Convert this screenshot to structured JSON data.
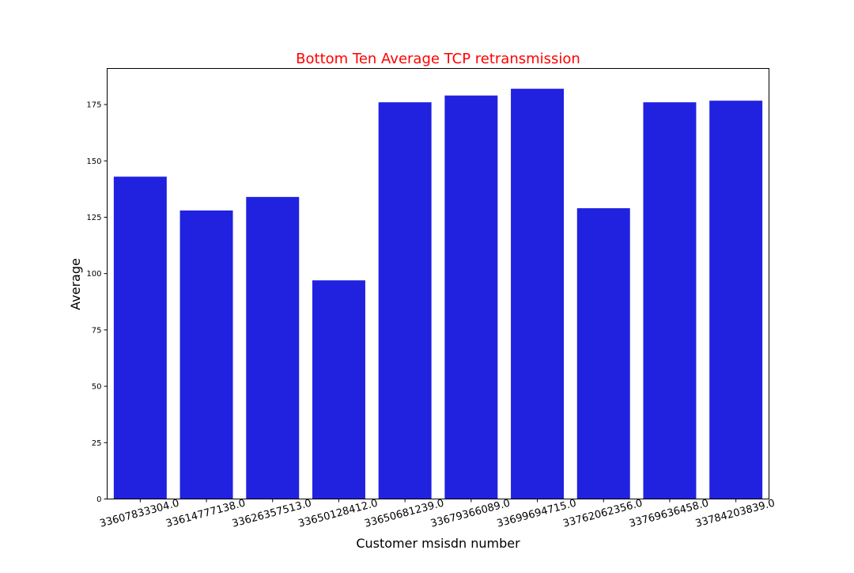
{
  "chart_data": {
    "type": "bar",
    "title": "Bottom Ten Average TCP retransmission",
    "xlabel": "Customer msisdn number",
    "ylabel": "Average",
    "categories": [
      "33607833304.0",
      "33614777138.0",
      "33626357513.0",
      "33650128412.0",
      "33650681239.0",
      "33679366089.0",
      "33699694715.0",
      "33762062356.0",
      "33769636458.0",
      "33784203839.0"
    ],
    "values": [
      143,
      128,
      134,
      97,
      176,
      179,
      182,
      129,
      176,
      176.7
    ],
    "yticks": [
      0,
      25,
      50,
      75,
      100,
      125,
      150,
      175
    ],
    "ylim": [
      0,
      191
    ],
    "grid": false,
    "colors": {
      "bar": "#2121e0",
      "title": "#ff0000",
      "axis": "#000000"
    }
  }
}
